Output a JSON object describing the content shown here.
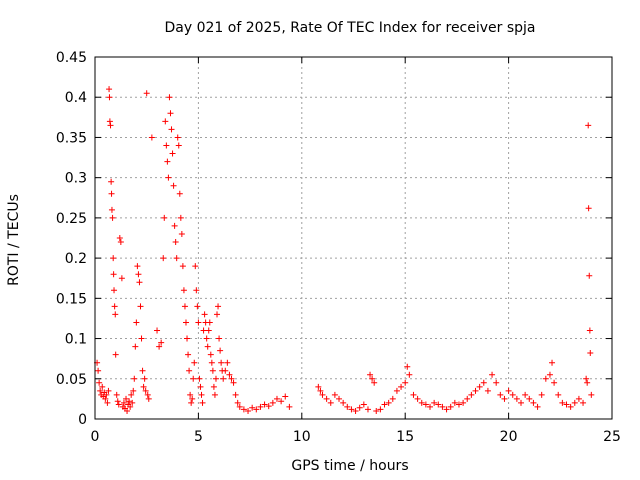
{
  "chart_data": {
    "type": "scatter",
    "title": "Day 021 of 2025, Rate Of TEC Index for receiver spja",
    "xlabel": "GPS time / hours",
    "ylabel": "ROTI / TECUs",
    "xlim": [
      0,
      25
    ],
    "ylim": [
      0,
      0.45
    ],
    "x_ticks": [
      "0",
      "5",
      "10",
      "15",
      "20",
      "25"
    ],
    "y_ticks": [
      "0",
      "0.05",
      "0.1",
      "0.15",
      "0.2",
      "0.25",
      "0.3",
      "0.35",
      "0.4",
      "0.45"
    ],
    "grid": true,
    "marker": "+",
    "colors": {
      "points": "#ff0000",
      "grid": "#a0a0a0",
      "axes": "#000000"
    },
    "series": [
      {
        "name": "ROTI",
        "points": [
          [
            0.1,
            0.07
          ],
          [
            0.15,
            0.06
          ],
          [
            0.2,
            0.045
          ],
          [
            0.25,
            0.035
          ],
          [
            0.3,
            0.03
          ],
          [
            0.35,
            0.04
          ],
          [
            0.4,
            0.028
          ],
          [
            0.45,
            0.033
          ],
          [
            0.5,
            0.025
          ],
          [
            0.55,
            0.03
          ],
          [
            0.6,
            0.02
          ],
          [
            0.65,
            0.035
          ],
          [
            0.68,
            0.41
          ],
          [
            0.7,
            0.4
          ],
          [
            0.72,
            0.37
          ],
          [
            0.75,
            0.365
          ],
          [
            0.78,
            0.295
          ],
          [
            0.8,
            0.28
          ],
          [
            0.82,
            0.26
          ],
          [
            0.85,
            0.25
          ],
          [
            0.88,
            0.2
          ],
          [
            0.9,
            0.18
          ],
          [
            0.92,
            0.16
          ],
          [
            0.95,
            0.14
          ],
          [
            0.98,
            0.13
          ],
          [
            1.0,
            0.08
          ],
          [
            1.05,
            0.03
          ],
          [
            1.1,
            0.022
          ],
          [
            1.15,
            0.018
          ],
          [
            1.2,
            0.225
          ],
          [
            1.25,
            0.22
          ],
          [
            1.3,
            0.175
          ],
          [
            1.35,
            0.015
          ],
          [
            1.4,
            0.02
          ],
          [
            1.45,
            0.013
          ],
          [
            1.5,
            0.025
          ],
          [
            1.55,
            0.01
          ],
          [
            1.6,
            0.018
          ],
          [
            1.65,
            0.022
          ],
          [
            1.7,
            0.015
          ],
          [
            1.75,
            0.03
          ],
          [
            1.8,
            0.02
          ],
          [
            1.85,
            0.035
          ],
          [
            1.9,
            0.05
          ],
          [
            1.95,
            0.09
          ],
          [
            2.0,
            0.12
          ],
          [
            2.05,
            0.19
          ],
          [
            2.1,
            0.18
          ],
          [
            2.15,
            0.17
          ],
          [
            2.2,
            0.14
          ],
          [
            2.25,
            0.1
          ],
          [
            2.3,
            0.06
          ],
          [
            2.35,
            0.04
          ],
          [
            2.4,
            0.05
          ],
          [
            2.45,
            0.035
          ],
          [
            2.5,
            0.405
          ],
          [
            2.55,
            0.03
          ],
          [
            2.6,
            0.025
          ],
          [
            2.75,
            0.35
          ],
          [
            3.0,
            0.11
          ],
          [
            3.1,
            0.09
          ],
          [
            3.2,
            0.095
          ],
          [
            3.3,
            0.2
          ],
          [
            3.35,
            0.25
          ],
          [
            3.4,
            0.37
          ],
          [
            3.45,
            0.34
          ],
          [
            3.5,
            0.32
          ],
          [
            3.55,
            0.3
          ],
          [
            3.6,
            0.4
          ],
          [
            3.65,
            0.38
          ],
          [
            3.7,
            0.36
          ],
          [
            3.75,
            0.33
          ],
          [
            3.8,
            0.29
          ],
          [
            3.85,
            0.24
          ],
          [
            3.9,
            0.22
          ],
          [
            3.95,
            0.2
          ],
          [
            4.0,
            0.35
          ],
          [
            4.05,
            0.34
          ],
          [
            4.1,
            0.28
          ],
          [
            4.15,
            0.25
          ],
          [
            4.2,
            0.23
          ],
          [
            4.25,
            0.19
          ],
          [
            4.3,
            0.16
          ],
          [
            4.35,
            0.14
          ],
          [
            4.4,
            0.12
          ],
          [
            4.45,
            0.1
          ],
          [
            4.5,
            0.08
          ],
          [
            4.55,
            0.06
          ],
          [
            4.6,
            0.03
          ],
          [
            4.65,
            0.02
          ],
          [
            4.7,
            0.025
          ],
          [
            4.75,
            0.05
          ],
          [
            4.8,
            0.07
          ],
          [
            4.85,
            0.19
          ],
          [
            4.9,
            0.16
          ],
          [
            4.95,
            0.14
          ],
          [
            5.0,
            0.12
          ],
          [
            5.05,
            0.05
          ],
          [
            5.1,
            0.04
          ],
          [
            5.15,
            0.03
          ],
          [
            5.2,
            0.02
          ],
          [
            5.25,
            0.11
          ],
          [
            5.3,
            0.13
          ],
          [
            5.35,
            0.12
          ],
          [
            5.4,
            0.1
          ],
          [
            5.45,
            0.09
          ],
          [
            5.5,
            0.11
          ],
          [
            5.55,
            0.12
          ],
          [
            5.6,
            0.08
          ],
          [
            5.65,
            0.07
          ],
          [
            5.7,
            0.06
          ],
          [
            5.75,
            0.04
          ],
          [
            5.8,
            0.03
          ],
          [
            5.85,
            0.05
          ],
          [
            5.9,
            0.13
          ],
          [
            5.95,
            0.14
          ],
          [
            6.0,
            0.1
          ],
          [
            6.05,
            0.085
          ],
          [
            6.1,
            0.07
          ],
          [
            6.15,
            0.06
          ],
          [
            6.2,
            0.05
          ],
          [
            6.3,
            0.06
          ],
          [
            6.4,
            0.07
          ],
          [
            6.5,
            0.055
          ],
          [
            6.6,
            0.05
          ],
          [
            6.7,
            0.045
          ],
          [
            6.8,
            0.03
          ],
          [
            6.9,
            0.02
          ],
          [
            7.0,
            0.015
          ],
          [
            7.2,
            0.012
          ],
          [
            7.4,
            0.01
          ],
          [
            7.6,
            0.014
          ],
          [
            7.8,
            0.012
          ],
          [
            8.0,
            0.015
          ],
          [
            8.2,
            0.018
          ],
          [
            8.4,
            0.016
          ],
          [
            8.6,
            0.02
          ],
          [
            8.8,
            0.025
          ],
          [
            9.0,
            0.022
          ],
          [
            9.2,
            0.028
          ],
          [
            9.4,
            0.015
          ],
          [
            10.8,
            0.04
          ],
          [
            10.9,
            0.035
          ],
          [
            11.0,
            0.03
          ],
          [
            11.2,
            0.025
          ],
          [
            11.4,
            0.02
          ],
          [
            11.6,
            0.03
          ],
          [
            11.8,
            0.025
          ],
          [
            12.0,
            0.02
          ],
          [
            12.2,
            0.015
          ],
          [
            12.4,
            0.012
          ],
          [
            12.6,
            0.01
          ],
          [
            12.8,
            0.014
          ],
          [
            13.0,
            0.018
          ],
          [
            13.2,
            0.012
          ],
          [
            13.3,
            0.055
          ],
          [
            13.4,
            0.05
          ],
          [
            13.5,
            0.045
          ],
          [
            13.6,
            0.01
          ],
          [
            13.8,
            0.012
          ],
          [
            14.0,
            0.018
          ],
          [
            14.2,
            0.02
          ],
          [
            14.4,
            0.025
          ],
          [
            14.6,
            0.035
          ],
          [
            14.8,
            0.04
          ],
          [
            15.0,
            0.045
          ],
          [
            15.1,
            0.065
          ],
          [
            15.2,
            0.055
          ],
          [
            15.4,
            0.03
          ],
          [
            15.6,
            0.025
          ],
          [
            15.8,
            0.02
          ],
          [
            16.0,
            0.018
          ],
          [
            16.2,
            0.015
          ],
          [
            16.4,
            0.02
          ],
          [
            16.6,
            0.018
          ],
          [
            16.8,
            0.015
          ],
          [
            17.0,
            0.012
          ],
          [
            17.2,
            0.015
          ],
          [
            17.4,
            0.02
          ],
          [
            17.6,
            0.018
          ],
          [
            17.8,
            0.02
          ],
          [
            18.0,
            0.025
          ],
          [
            18.2,
            0.03
          ],
          [
            18.4,
            0.035
          ],
          [
            18.6,
            0.04
          ],
          [
            18.8,
            0.045
          ],
          [
            19.0,
            0.035
          ],
          [
            19.2,
            0.055
          ],
          [
            19.4,
            0.045
          ],
          [
            19.6,
            0.03
          ],
          [
            19.8,
            0.025
          ],
          [
            20.0,
            0.035
          ],
          [
            20.2,
            0.03
          ],
          [
            20.4,
            0.025
          ],
          [
            20.6,
            0.02
          ],
          [
            20.8,
            0.03
          ],
          [
            21.0,
            0.025
          ],
          [
            21.2,
            0.02
          ],
          [
            21.4,
            0.015
          ],
          [
            21.6,
            0.03
          ],
          [
            21.8,
            0.05
          ],
          [
            22.0,
            0.055
          ],
          [
            22.1,
            0.07
          ],
          [
            22.2,
            0.045
          ],
          [
            22.4,
            0.03
          ],
          [
            22.6,
            0.02
          ],
          [
            22.8,
            0.018
          ],
          [
            23.0,
            0.015
          ],
          [
            23.2,
            0.02
          ],
          [
            23.4,
            0.025
          ],
          [
            23.6,
            0.02
          ],
          [
            23.75,
            0.05
          ],
          [
            23.8,
            0.045
          ],
          [
            23.85,
            0.365
          ],
          [
            23.87,
            0.262
          ],
          [
            23.9,
            0.178
          ],
          [
            23.93,
            0.11
          ],
          [
            23.95,
            0.082
          ],
          [
            24.0,
            0.03
          ]
        ]
      }
    ]
  }
}
